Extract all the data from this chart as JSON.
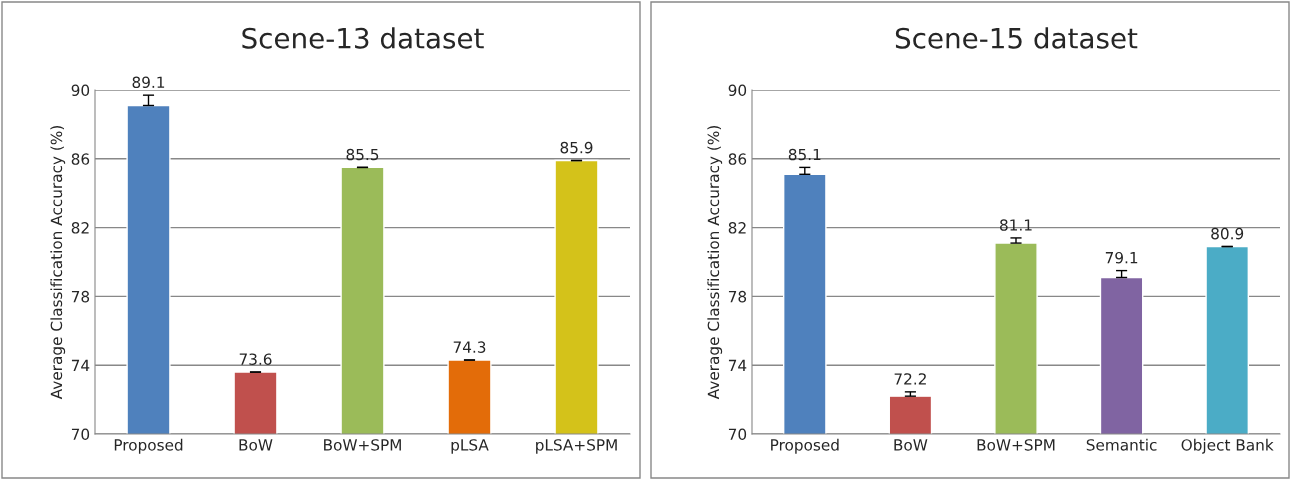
{
  "chart_data": [
    {
      "type": "bar",
      "title": "Scene-13 dataset",
      "ylabel": "Average Classification Accuracy (%)",
      "categories": [
        "Proposed",
        "BoW",
        "BoW+SPM",
        "pLSA",
        "pLSA+SPM"
      ],
      "values": [
        89.1,
        73.6,
        85.5,
        74.3,
        85.9
      ],
      "colors": [
        "#4f81bd",
        "#c0504d",
        "#9bbb59",
        "#e36c09",
        "#d4c21a"
      ],
      "errors": [
        [
          89.1,
          89.7
        ],
        [
          73.6,
          73.6
        ],
        [
          85.5,
          85.5
        ],
        [
          74.3,
          74.3
        ],
        [
          85.9,
          85.9
        ]
      ],
      "data_labels": true,
      "ylim": [
        70,
        90
      ],
      "yticks": [
        70,
        74,
        78,
        82,
        86,
        90
      ],
      "grid": "y"
    },
    {
      "type": "bar",
      "title": "Scene-15 dataset",
      "ylabel": "Average Classification Accuracy (%)",
      "categories": [
        "Proposed",
        "BoW",
        "BoW+SPM",
        "Semantic",
        "Object Bank"
      ],
      "values": [
        85.1,
        72.2,
        81.1,
        79.1,
        80.9
      ],
      "colors": [
        "#4f81bd",
        "#c0504d",
        "#9bbb59",
        "#8064a2",
        "#4bacc6"
      ],
      "errors": [
        [
          85.1,
          85.5
        ],
        [
          72.2,
          72.45
        ],
        [
          81.1,
          81.4
        ],
        [
          79.1,
          79.5
        ],
        [
          80.9,
          80.9
        ]
      ],
      "data_labels": true,
      "ylim": [
        70,
        90
      ],
      "yticks": [
        70,
        74,
        78,
        82,
        86,
        90
      ],
      "grid": "y"
    }
  ]
}
